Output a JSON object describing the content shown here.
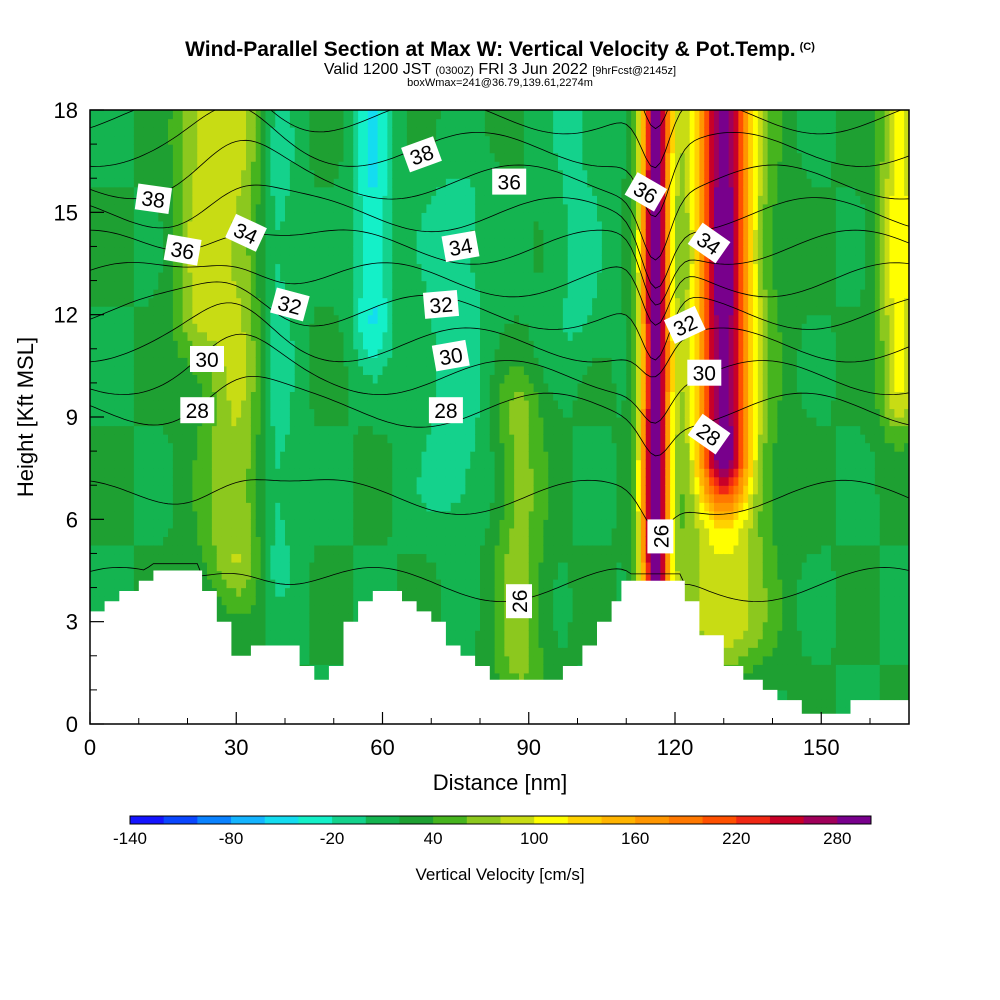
{
  "header": {
    "title": "Wind-Parallel Section at Max W: Vertical Velocity & Pot.Temp.",
    "title_mark": "(C)",
    "valid_prefix": "Valid 1200 JST",
    "valid_utc": "(0300Z)",
    "valid_date": "FRI 3 Jun 2022",
    "forecast": "[9hrFcst@2145z]",
    "box_info": "boxWmax=241@36.79,139.61,2274m"
  },
  "chart_data": {
    "type": "heatmap",
    "xlabel": "Distance [nm]",
    "ylabel": "Height [Kft MSL]",
    "xlim": [
      0,
      168
    ],
    "ylim": [
      0,
      18
    ],
    "x_ticks": [
      "0",
      "30",
      "60",
      "90",
      "120",
      "150"
    ],
    "y_ticks": [
      "0",
      "3",
      "6",
      "9",
      "12",
      "15",
      "18"
    ],
    "colorbar": {
      "label": "Vertical Velocity [cm/s]",
      "tick_labels": [
        "-140",
        "-80",
        "-20",
        "40",
        "100",
        "160",
        "220",
        "280"
      ],
      "min": -140,
      "max": 300,
      "step": 20,
      "colors": [
        "#1414ff",
        "#0a46ff",
        "#0a82ff",
        "#14b4ff",
        "#14dcf0",
        "#14f0c8",
        "#14d28c",
        "#14b450",
        "#1ea032",
        "#46b41e",
        "#8cc81e",
        "#c8dc14",
        "#ffff00",
        "#ffd200",
        "#ffb400",
        "#ff9600",
        "#ff7800",
        "#ff5000",
        "#f02814",
        "#c80028",
        "#a0005a",
        "#78008c"
      ]
    },
    "background_w": 20,
    "updraft_columns": [
      {
        "x": 30,
        "w": 60,
        "z0": 5,
        "z1": 18,
        "width": 7
      },
      {
        "x": 22,
        "w": 50,
        "z0": 12,
        "z1": 18,
        "width": 5
      },
      {
        "x": 88,
        "w": 50,
        "z0": 2,
        "z1": 9,
        "width": 5
      },
      {
        "x": 116,
        "w": 280,
        "z0": 4,
        "z1": 18,
        "width": 3
      },
      {
        "x": 130,
        "w": 200,
        "z0": 8,
        "z1": 18,
        "width": 5
      },
      {
        "x": 130,
        "w": 80,
        "z0": 3,
        "z1": 18,
        "width": 9
      },
      {
        "x": 166,
        "w": 90,
        "z0": 10,
        "z1": 18,
        "width": 4
      }
    ],
    "downdraft_columns": [
      {
        "x": 38,
        "w": -40,
        "z0": 5,
        "z1": 17,
        "width": 4
      },
      {
        "x": 58,
        "w": -60,
        "z0": 12,
        "z1": 18,
        "width": 4
      },
      {
        "x": 75,
        "w": -30,
        "z0": 7,
        "z1": 15,
        "width": 8
      },
      {
        "x": 100,
        "w": -25,
        "z0": 12,
        "z1": 18,
        "width": 6
      }
    ],
    "terrain": [
      [
        0,
        3.3
      ],
      [
        3,
        3.6
      ],
      [
        6,
        3.9
      ],
      [
        10,
        4.2
      ],
      [
        13,
        4.5
      ],
      [
        22,
        4.5
      ],
      [
        23,
        3.9
      ],
      [
        26,
        3.0
      ],
      [
        29,
        2.0
      ],
      [
        33,
        2.3
      ],
      [
        42,
        2.3
      ],
      [
        43,
        1.7
      ],
      [
        46,
        1.3
      ],
      [
        49,
        1.7
      ],
      [
        52,
        3.0
      ],
      [
        55,
        3.6
      ],
      [
        58,
        3.9
      ],
      [
        63,
        3.9
      ],
      [
        64,
        3.6
      ],
      [
        67,
        3.3
      ],
      [
        70,
        3.0
      ],
      [
        73,
        2.3
      ],
      [
        76,
        2.0
      ],
      [
        79,
        1.7
      ],
      [
        82,
        1.3
      ],
      [
        95,
        1.3
      ],
      [
        97,
        1.7
      ],
      [
        101,
        2.3
      ],
      [
        104,
        3.0
      ],
      [
        107,
        3.6
      ],
      [
        109,
        4.2
      ],
      [
        121,
        4.2
      ],
      [
        122,
        3.6
      ],
      [
        125,
        2.6
      ],
      [
        130,
        1.7
      ],
      [
        134,
        1.3
      ],
      [
        138,
        1.0
      ],
      [
        141,
        0.7
      ],
      [
        146,
        0.3
      ],
      [
        152,
        0.3
      ],
      [
        156,
        0.7
      ],
      [
        168,
        0.7
      ]
    ],
    "theta_levels": [
      26,
      27,
      28,
      29,
      30,
      31,
      32,
      33,
      34,
      35,
      36,
      37,
      38,
      39
    ],
    "theta_labels": [
      {
        "text": "38",
        "x": 13,
        "y": 15.4,
        "rot": 8
      },
      {
        "text": "36",
        "x": 19,
        "y": 13.9,
        "rot": 10
      },
      {
        "text": "34",
        "x": 32,
        "y": 14.4,
        "rot": 25
      },
      {
        "text": "32",
        "x": 41,
        "y": 12.3,
        "rot": 15
      },
      {
        "text": "30",
        "x": 24,
        "y": 10.7,
        "rot": 0
      },
      {
        "text": "28",
        "x": 22,
        "y": 9.2,
        "rot": 0
      },
      {
        "text": "38",
        "x": 68,
        "y": 16.7,
        "rot": -20
      },
      {
        "text": "36",
        "x": 86,
        "y": 15.9,
        "rot": 0
      },
      {
        "text": "34",
        "x": 76,
        "y": 14.0,
        "rot": -10
      },
      {
        "text": "32",
        "x": 72,
        "y": 12.3,
        "rot": -5
      },
      {
        "text": "30",
        "x": 74,
        "y": 10.8,
        "rot": -10
      },
      {
        "text": "28",
        "x": 73,
        "y": 9.2,
        "rot": 0
      },
      {
        "text": "26",
        "x": 88,
        "y": 3.6,
        "rot": -90
      },
      {
        "text": "36",
        "x": 114,
        "y": 15.6,
        "rot": 30
      },
      {
        "text": "34",
        "x": 127,
        "y": 14.1,
        "rot": 35
      },
      {
        "text": "32",
        "x": 122,
        "y": 11.7,
        "rot": -25
      },
      {
        "text": "30",
        "x": 126,
        "y": 10.3,
        "rot": 0
      },
      {
        "text": "28",
        "x": 127,
        "y": 8.5,
        "rot": 35
      },
      {
        "text": "26",
        "x": 117,
        "y": 5.5,
        "rot": -90
      }
    ]
  }
}
